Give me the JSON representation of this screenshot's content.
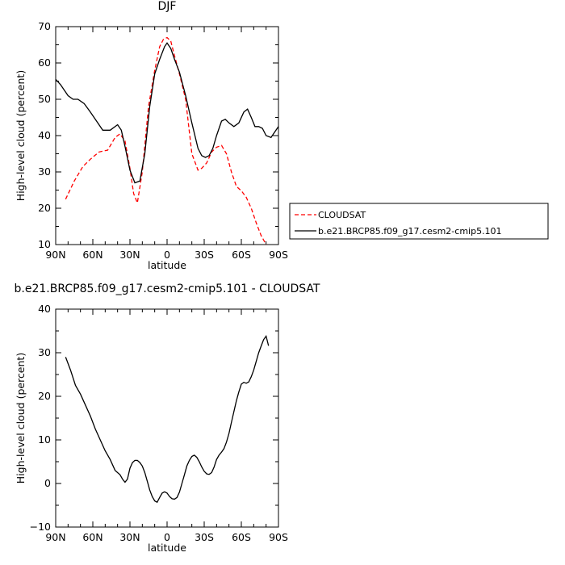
{
  "chart_data": [
    {
      "type": "line",
      "title": "DJF",
      "xlabel": "latitude",
      "ylabel": "High-level cloud (percent)",
      "xlim": [
        90,
        -90
      ],
      "ylim": [
        10,
        70
      ],
      "xticks": [
        90,
        60,
        30,
        0,
        -30,
        -60,
        -90
      ],
      "xticklabels": [
        "90N",
        "60N",
        "30N",
        "0",
        "30S",
        "60S",
        "90S"
      ],
      "yticks": [
        10,
        20,
        30,
        40,
        50,
        60,
        70
      ],
      "yticklabels": [
        "10",
        "20",
        "30",
        "40",
        "50",
        "60",
        "70"
      ],
      "legend_position": "right",
      "series": [
        {
          "name": "CLOUDSAT",
          "color": "#ff0000",
          "style": "dashed",
          "x": [
            82,
            75,
            68,
            62,
            55,
            48,
            42,
            38,
            34,
            30,
            27,
            24,
            20,
            15,
            10,
            6,
            3,
            0,
            -3,
            -6,
            -10,
            -15,
            -20,
            -25,
            -28,
            -32,
            -36,
            -40,
            -44,
            -48,
            -52,
            -56,
            -60,
            -64,
            -68,
            -72,
            -76,
            -80,
            -82
          ],
          "values": [
            22.5,
            27.5,
            31.5,
            33.5,
            35.5,
            36.0,
            39.5,
            40.5,
            38.5,
            31.0,
            24.0,
            21.5,
            30.0,
            48.0,
            58.0,
            64.5,
            66.5,
            67.0,
            66.0,
            62.0,
            57.0,
            50.0,
            35.0,
            30.5,
            31.0,
            32.5,
            35.5,
            36.8,
            37.3,
            35.0,
            30.0,
            26.0,
            24.8,
            23.0,
            20.0,
            16.0,
            12.5,
            10.0,
            8.0
          ]
        },
        {
          "name": "b.e21.BRCP85.f09_g17.cesm2-cmip5.101",
          "color": "#000000",
          "style": "solid",
          "x": [
            90,
            86,
            80,
            76,
            72,
            67,
            62,
            57,
            52,
            46,
            40,
            37,
            34,
            30,
            26,
            22,
            18,
            14,
            10,
            6,
            2,
            0,
            -3,
            -6,
            -10,
            -15,
            -20,
            -25,
            -28,
            -31,
            -34,
            -37,
            -40,
            -44,
            -47,
            -50,
            -54,
            -58,
            -62,
            -65,
            -68,
            -71,
            -74,
            -77,
            -80,
            -84,
            -87,
            -90
          ],
          "values": [
            55.5,
            54.0,
            51.0,
            50.0,
            50.0,
            48.8,
            46.5,
            44.0,
            41.5,
            41.5,
            43.0,
            41.5,
            37.0,
            30.5,
            27.0,
            27.5,
            35.0,
            48.0,
            57.0,
            61.0,
            64.5,
            65.5,
            64.0,
            61.0,
            57.5,
            51.0,
            43.5,
            36.5,
            34.5,
            34.0,
            34.5,
            36.5,
            40.0,
            44.0,
            44.5,
            43.5,
            42.5,
            43.5,
            46.5,
            47.3,
            45.0,
            42.5,
            42.5,
            42.0,
            40.0,
            39.5,
            41.0,
            42.5
          ]
        }
      ]
    },
    {
      "type": "line",
      "title": "b.e21.BRCP85.f09_g17.cesm2-cmip5.101 - CLOUDSAT",
      "xlabel": "latitude",
      "ylabel": "High-level cloud (percent)",
      "xlim": [
        90,
        -90
      ],
      "ylim": [
        -10,
        40
      ],
      "xticks": [
        90,
        60,
        30,
        0,
        -30,
        -60,
        -90
      ],
      "xticklabels": [
        "90N",
        "60N",
        "30N",
        "0",
        "30S",
        "60S",
        "90S"
      ],
      "yticks": [
        -10,
        0,
        10,
        20,
        30,
        40
      ],
      "yticklabels": [
        "-10",
        "0",
        "10",
        "20",
        "30",
        "40"
      ],
      "series": [
        {
          "color": "#000000",
          "style": "solid",
          "x": [
            82,
            78,
            74,
            70,
            66,
            62,
            58,
            54,
            50,
            46,
            42,
            38,
            36,
            34,
            32,
            30,
            28,
            26,
            24,
            22,
            20,
            18,
            16,
            14,
            12,
            10,
            8,
            6,
            4,
            2,
            0,
            -2,
            -4,
            -6,
            -8,
            -10,
            -12,
            -14,
            -16,
            -18,
            -20,
            -22,
            -24,
            -26,
            -28,
            -30,
            -32,
            -34,
            -36,
            -38,
            -40,
            -42,
            -44,
            -46,
            -48,
            -50,
            -52,
            -54,
            -56,
            -58,
            -60,
            -62,
            -64,
            -66,
            -68,
            -70,
            -72,
            -74,
            -76,
            -78,
            -80,
            -82
          ],
          "values": [
            29.0,
            26.0,
            22.5,
            20.5,
            18.0,
            15.5,
            12.5,
            10.0,
            7.5,
            5.5,
            3.0,
            2.0,
            1.0,
            0.3,
            1.0,
            3.5,
            4.8,
            5.3,
            5.3,
            4.8,
            4.0,
            2.5,
            0.5,
            -1.5,
            -3.0,
            -4.0,
            -4.3,
            -3.2,
            -2.2,
            -1.9,
            -2.2,
            -3.0,
            -3.5,
            -3.6,
            -3.2,
            -2.0,
            0.0,
            2.0,
            4.0,
            5.3,
            6.2,
            6.5,
            6.0,
            5.0,
            3.8,
            2.8,
            2.2,
            2.1,
            2.5,
            3.8,
            5.5,
            6.5,
            7.2,
            8.0,
            9.5,
            11.5,
            14.0,
            16.5,
            19.0,
            21.0,
            22.8,
            23.2,
            23.0,
            23.3,
            24.5,
            26.0,
            28.0,
            30.0,
            31.5,
            33.0,
            33.8,
            31.6
          ]
        }
      ]
    }
  ]
}
